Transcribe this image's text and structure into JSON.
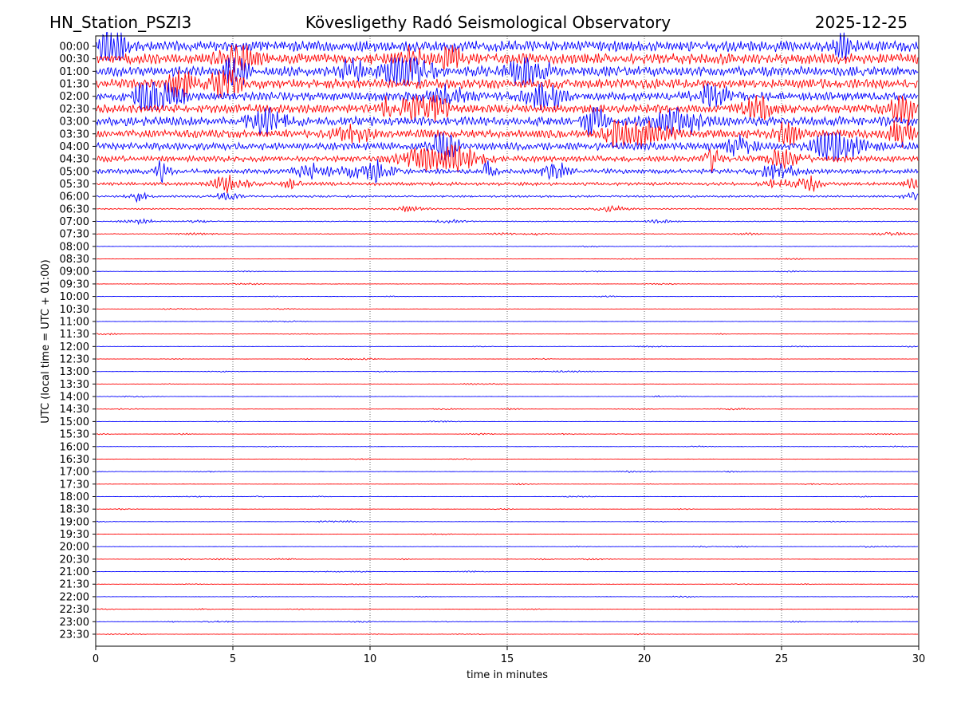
{
  "header": {
    "station": "HN_Station_PSZI3",
    "title": "Kövesligethy Radó Seismological Observatory",
    "date": "2025-12-25"
  },
  "chart_data": {
    "type": "line",
    "title": "Kövesligethy Radó Seismological Observatory",
    "xlabel": "time in minutes",
    "ylabel": "UTC (local time = UTC + 01:00)",
    "xlim": [
      0,
      30
    ],
    "x_ticks": [
      "0",
      "5",
      "10",
      "15",
      "20",
      "25",
      "30"
    ],
    "x_tick_values": [
      0,
      5,
      10,
      15,
      20,
      25,
      30
    ],
    "grid_x": [
      5,
      10,
      15,
      20,
      25
    ],
    "grid": true,
    "series_colors": [
      "#0000ff",
      "#ff0000"
    ],
    "rows": [
      "00:00",
      "00:30",
      "01:00",
      "01:30",
      "02:00",
      "02:30",
      "03:00",
      "03:30",
      "04:00",
      "04:30",
      "05:00",
      "05:30",
      "06:00",
      "06:30",
      "07:00",
      "07:30",
      "08:00",
      "08:30",
      "09:00",
      "09:30",
      "10:00",
      "10:30",
      "11:00",
      "11:30",
      "12:00",
      "12:30",
      "13:00",
      "13:30",
      "14:00",
      "14:30",
      "15:00",
      "15:30",
      "16:00",
      "16:30",
      "17:00",
      "17:30",
      "18:00",
      "18:30",
      "19:00",
      "19:30",
      "20:00",
      "20:30",
      "21:00",
      "21:30",
      "22:00",
      "22:30",
      "23:00",
      "23:30"
    ],
    "amplitude_level": [
      1.0,
      1.0,
      0.95,
      0.9,
      0.8,
      0.8,
      0.85,
      0.75,
      0.7,
      0.55,
      0.45,
      0.3,
      0.18,
      0.12,
      0.08,
      0.06,
      0.03,
      0.02,
      0.02,
      0.04,
      0.03,
      0.02,
      0.02,
      0.02,
      0.02,
      0.02,
      0.02,
      0.02,
      0.02,
      0.02,
      0.02,
      0.02,
      0.02,
      0.02,
      0.02,
      0.02,
      0.02,
      0.02,
      0.02,
      0.02,
      0.02,
      0.02,
      0.02,
      0.02,
      0.02,
      0.02,
      0.02,
      0.02
    ]
  }
}
